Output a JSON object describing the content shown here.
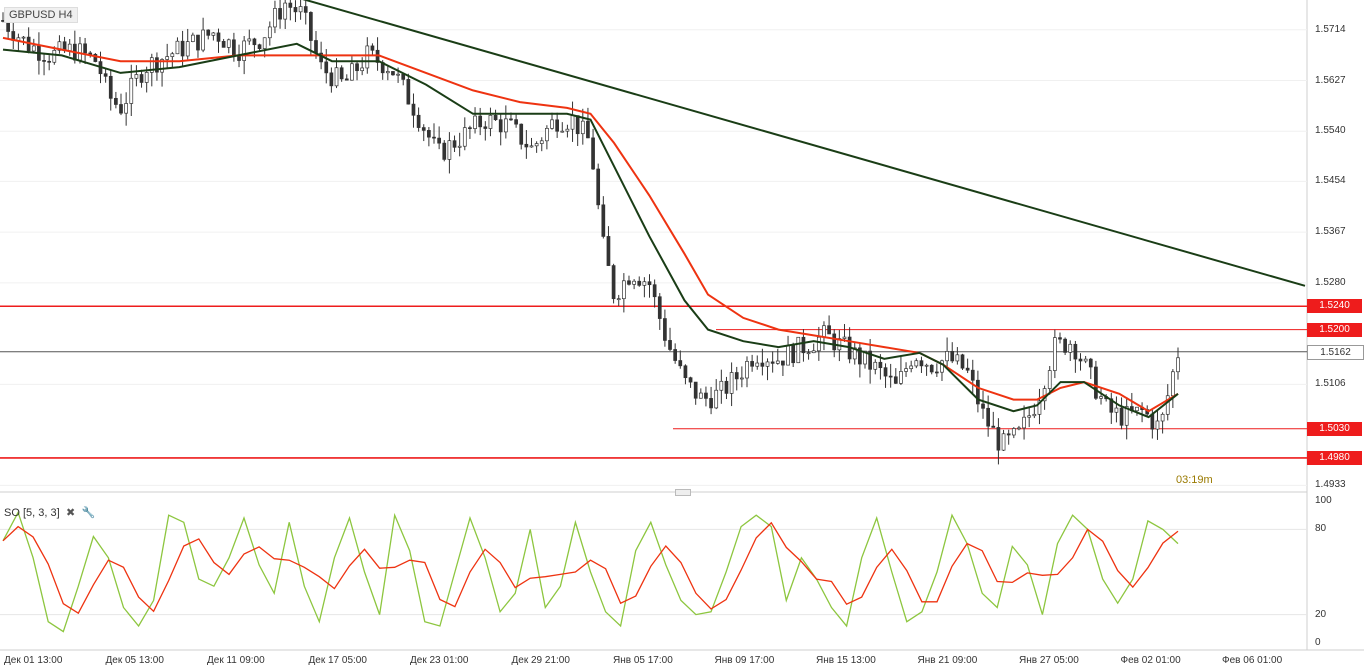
{
  "header": {
    "symbol": "GBPUSD H4"
  },
  "oscillator": {
    "label": "SO [5, 3, 3]",
    "close_icon": "close-icon",
    "settings_icon": "wrench-icon"
  },
  "timer": "03:19m",
  "price_axis": {
    "ticks": [
      "1.5714",
      "1.5627",
      "1.5540",
      "1.5454",
      "1.5367",
      "1.5280",
      "1.5106",
      "1.4933"
    ],
    "tags": [
      {
        "label": "1.5240",
        "value": 1.524,
        "style": "red"
      },
      {
        "label": "1.5200",
        "value": 1.52,
        "style": "red"
      },
      {
        "label": "1.5162",
        "value": 1.5162,
        "style": "current"
      },
      {
        "label": "1.5030",
        "value": 1.503,
        "style": "red"
      },
      {
        "label": "1.4980",
        "value": 1.498,
        "style": "red"
      }
    ]
  },
  "osc_axis": {
    "ticks": [
      "100",
      "80",
      "20",
      "0"
    ]
  },
  "time_axis": {
    "labels": [
      "Дек 01 13:00",
      "Дек 05 13:00",
      "Дек 11 09:00",
      "Дек 17 05:00",
      "Дек 23 01:00",
      "Дек 29 21:00",
      "Янв 05 17:00",
      "Янв 09 17:00",
      "Янв 15 13:00",
      "Янв 21 09:00",
      "Янв 27 05:00",
      "Фев 02 01:00",
      "Фев 06 01:00"
    ]
  },
  "chart_data": {
    "type": "candlestick",
    "title": "GBPUSD H4",
    "ylim": [
      1.4925,
      1.5765
    ],
    "horizontal_lines": [
      {
        "value": 1.524,
        "color": "#ee1c1c",
        "full_width": true
      },
      {
        "value": 1.52,
        "color": "#ee1c1c",
        "full_width": false
      },
      {
        "value": 1.503,
        "color": "#ee1c1c",
        "full_width": false
      },
      {
        "value": 1.498,
        "color": "#ee1c1c",
        "full_width": true
      },
      {
        "value": 1.5162,
        "color": "#555555",
        "full_width": true
      }
    ],
    "trendline": {
      "color": "#1a3d16",
      "from_bar": 0.0,
      "from_value": 1.579,
      "to_bar": 1.0,
      "to_value": 1.5275
    },
    "close_path": [
      [
        0.0,
        1.573
      ],
      [
        0.02,
        1.569
      ],
      [
        0.04,
        1.567
      ],
      [
        0.06,
        1.568
      ],
      [
        0.08,
        1.566
      ],
      [
        0.09,
        1.56
      ],
      [
        0.1,
        1.558
      ],
      [
        0.12,
        1.565
      ],
      [
        0.14,
        1.567
      ],
      [
        0.16,
        1.569
      ],
      [
        0.18,
        1.571
      ],
      [
        0.2,
        1.568
      ],
      [
        0.22,
        1.57
      ],
      [
        0.24,
        1.576
      ],
      [
        0.255,
        1.574
      ],
      [
        0.27,
        1.565
      ],
      [
        0.29,
        1.562
      ],
      [
        0.31,
        1.567
      ],
      [
        0.33,
        1.565
      ],
      [
        0.35,
        1.558
      ],
      [
        0.37,
        1.55
      ],
      [
        0.39,
        1.553
      ],
      [
        0.41,
        1.556
      ],
      [
        0.43,
        1.555
      ],
      [
        0.45,
        1.551
      ],
      [
        0.47,
        1.556
      ],
      [
        0.485,
        1.556
      ],
      [
        0.5,
        1.552
      ],
      [
        0.51,
        1.535
      ],
      [
        0.52,
        1.526
      ],
      [
        0.535,
        1.53
      ],
      [
        0.55,
        1.528
      ],
      [
        0.565,
        1.518
      ],
      [
        0.58,
        1.511
      ],
      [
        0.595,
        1.508
      ],
      [
        0.61,
        1.509
      ],
      [
        0.625,
        1.512
      ],
      [
        0.64,
        1.516
      ],
      [
        0.66,
        1.515
      ],
      [
        0.68,
        1.517
      ],
      [
        0.7,
        1.519
      ],
      [
        0.715,
        1.517
      ],
      [
        0.73,
        1.515
      ],
      [
        0.745,
        1.513
      ],
      [
        0.76,
        1.51
      ],
      [
        0.775,
        1.516
      ],
      [
        0.79,
        1.514
      ],
      [
        0.805,
        1.515
      ],
      [
        0.82,
        1.513
      ],
      [
        0.835,
        1.505
      ],
      [
        0.85,
        1.5
      ],
      [
        0.865,
        1.502
      ],
      [
        0.88,
        1.508
      ],
      [
        0.895,
        1.517
      ],
      [
        0.91,
        1.518
      ],
      [
        0.925,
        1.512
      ],
      [
        0.94,
        1.506
      ],
      [
        0.955,
        1.505
      ],
      [
        0.97,
        1.506
      ],
      [
        0.985,
        1.503
      ],
      [
        0.995,
        1.512
      ],
      [
        1.0,
        1.516
      ]
    ],
    "ema_fast": {
      "color": "#1a3d16",
      "values": [
        [
          0.0,
          1.568
        ],
        [
          0.05,
          1.567
        ],
        [
          0.1,
          1.564
        ],
        [
          0.15,
          1.565
        ],
        [
          0.2,
          1.567
        ],
        [
          0.25,
          1.569
        ],
        [
          0.28,
          1.566
        ],
        [
          0.32,
          1.566
        ],
        [
          0.36,
          1.562
        ],
        [
          0.4,
          1.557
        ],
        [
          0.44,
          1.557
        ],
        [
          0.48,
          1.557
        ],
        [
          0.5,
          1.556
        ],
        [
          0.52,
          1.548
        ],
        [
          0.55,
          1.536
        ],
        [
          0.58,
          1.525
        ],
        [
          0.6,
          1.52
        ],
        [
          0.63,
          1.518
        ],
        [
          0.66,
          1.517
        ],
        [
          0.69,
          1.518
        ],
        [
          0.72,
          1.517
        ],
        [
          0.75,
          1.515
        ],
        [
          0.78,
          1.516
        ],
        [
          0.8,
          1.514
        ],
        [
          0.83,
          1.508
        ],
        [
          0.86,
          1.506
        ],
        [
          0.88,
          1.507
        ],
        [
          0.9,
          1.511
        ],
        [
          0.92,
          1.511
        ],
        [
          0.95,
          1.507
        ],
        [
          0.975,
          1.505
        ],
        [
          1.0,
          1.509
        ]
      ]
    },
    "ema_slow": {
      "color": "#ee3311",
      "values": [
        [
          0.0,
          1.57
        ],
        [
          0.05,
          1.568
        ],
        [
          0.1,
          1.566
        ],
        [
          0.15,
          1.566
        ],
        [
          0.2,
          1.567
        ],
        [
          0.25,
          1.567
        ],
        [
          0.28,
          1.567
        ],
        [
          0.32,
          1.567
        ],
        [
          0.36,
          1.564
        ],
        [
          0.4,
          1.561
        ],
        [
          0.44,
          1.559
        ],
        [
          0.48,
          1.558
        ],
        [
          0.5,
          1.557
        ],
        [
          0.52,
          1.552
        ],
        [
          0.55,
          1.543
        ],
        [
          0.58,
          1.533
        ],
        [
          0.6,
          1.526
        ],
        [
          0.63,
          1.522
        ],
        [
          0.66,
          1.52
        ],
        [
          0.69,
          1.519
        ],
        [
          0.72,
          1.518
        ],
        [
          0.75,
          1.517
        ],
        [
          0.78,
          1.516
        ],
        [
          0.8,
          1.514
        ],
        [
          0.83,
          1.51
        ],
        [
          0.86,
          1.508
        ],
        [
          0.88,
          1.508
        ],
        [
          0.9,
          1.51
        ],
        [
          0.92,
          1.511
        ],
        [
          0.95,
          1.509
        ],
        [
          0.975,
          1.506
        ],
        [
          1.0,
          1.509
        ]
      ]
    },
    "stochastic": {
      "k_color": "#8dc63f",
      "d_color": "#ee3311",
      "range": [
        0,
        100
      ],
      "levels": [
        20,
        80
      ],
      "k_values": [
        72,
        92,
        60,
        15,
        8,
        40,
        75,
        60,
        25,
        12,
        30,
        90,
        85,
        45,
        40,
        60,
        88,
        55,
        35,
        85,
        40,
        15,
        60,
        88,
        50,
        20,
        90,
        65,
        15,
        12,
        50,
        88,
        60,
        22,
        35,
        80,
        25,
        40,
        85,
        50,
        22,
        12,
        65,
        85,
        55,
        30,
        20,
        22,
        50,
        82,
        90,
        82,
        30,
        60,
        45,
        25,
        12,
        60,
        88,
        50,
        15,
        22,
        50,
        90,
        70,
        35,
        25,
        68,
        55,
        20,
        70,
        90,
        80,
        45,
        28,
        45,
        86,
        80,
        70
      ]
    },
    "x_tick_labels": [
      "Дек 01 13:00",
      "Дек 05 13:00",
      "Дек 11 09:00",
      "Дек 17 05:00",
      "Дек 23 01:00",
      "Дек 29 21:00",
      "Янв 05 17:00",
      "Янв 09 17:00",
      "Янв 15 13:00",
      "Янв 21 09:00",
      "Янв 27 05:00",
      "Фев 02 01:00",
      "Фев 06 01:00"
    ],
    "y_tick_labels": [
      "1.5714",
      "1.5627",
      "1.5540",
      "1.5454",
      "1.5367",
      "1.5280",
      "1.5106",
      "1.4933"
    ]
  }
}
